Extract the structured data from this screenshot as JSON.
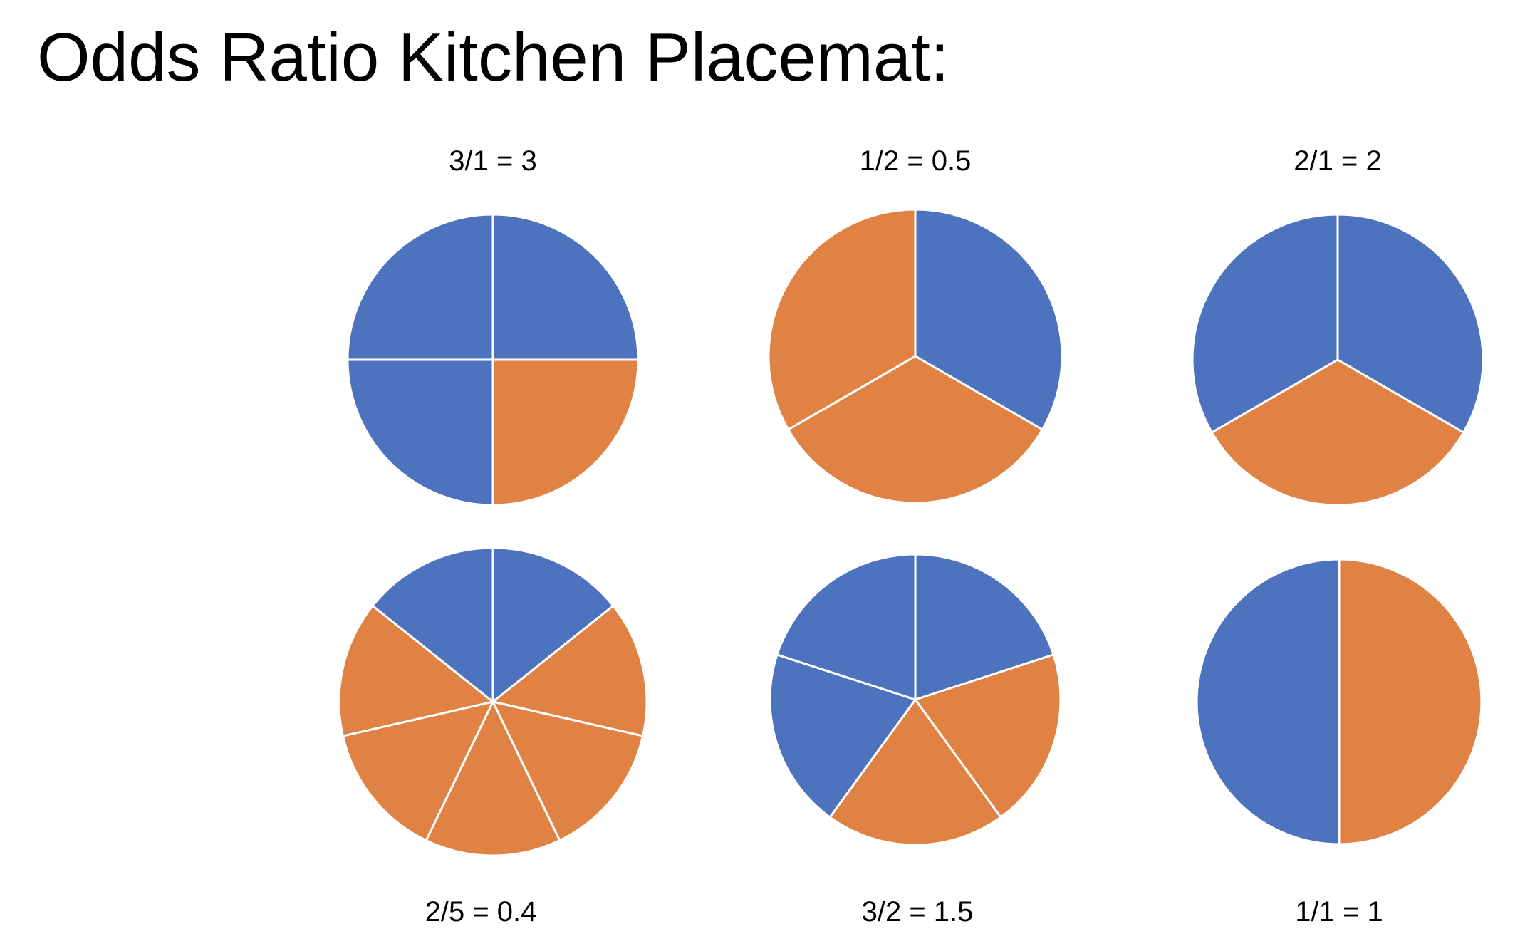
{
  "title": "Odds Ratio Kitchen Placemat:",
  "colors": {
    "blue": "#4E73BE",
    "orange": "#E08243",
    "divider": "#FFFFFF"
  },
  "chart_data": [
    {
      "type": "pie",
      "label": "3/1 = 3",
      "counts": {
        "blue": 3,
        "orange": 1
      },
      "slices": [
        "blue",
        "orange",
        "blue",
        "blue"
      ]
    },
    {
      "type": "pie",
      "label": "1/2 = 0.5",
      "counts": {
        "blue": 1,
        "orange": 2
      },
      "slices": [
        "blue",
        "orange",
        "orange"
      ]
    },
    {
      "type": "pie",
      "label": "2/1 = 2",
      "counts": {
        "blue": 2,
        "orange": 1
      },
      "slices": [
        "blue",
        "orange",
        "blue"
      ]
    },
    {
      "type": "pie",
      "label": "2/5 = 0.4",
      "counts": {
        "blue": 2,
        "orange": 5
      },
      "slices": [
        "blue",
        "orange",
        "orange",
        "orange",
        "orange",
        "orange",
        "blue"
      ]
    },
    {
      "type": "pie",
      "label": "3/2 = 1.5",
      "counts": {
        "blue": 3,
        "orange": 2
      },
      "slices": [
        "blue",
        "orange",
        "orange",
        "blue",
        "blue"
      ]
    },
    {
      "type": "pie",
      "label": "1/1 = 1",
      "counts": {
        "blue": 1,
        "orange": 1
      },
      "slices": [
        "orange",
        "blue"
      ]
    }
  ]
}
